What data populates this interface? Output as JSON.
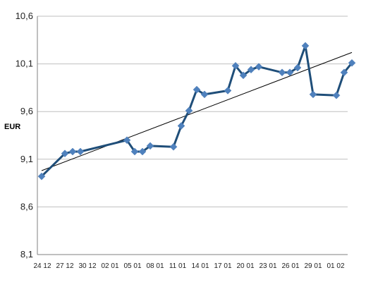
{
  "chart_data": {
    "type": "line",
    "title": "",
    "xlabel": "",
    "ylabel": "EUR",
    "ylim": [
      8.1,
      10.6
    ],
    "yticks": [
      8.1,
      8.6,
      9.1,
      9.6,
      10.1,
      10.6
    ],
    "ytick_labels": [
      "8,1",
      "8,6",
      "9,1",
      "9,6",
      "10,1",
      "10,6"
    ],
    "xtick_labels": [
      "24 12",
      "27 12",
      "30 12",
      "02 01",
      "05 01",
      "08 01",
      "11 01",
      "14 01",
      "17 01",
      "20 01",
      "23 01",
      "26 01",
      "29 01",
      "01 02"
    ],
    "grid": true,
    "legend": "none",
    "series": [
      {
        "color": "#1f4e79",
        "marker": "diamond",
        "marker_color": "#4f81bd",
        "values": [
          [
            0,
            8.92
          ],
          [
            3,
            9.16
          ],
          [
            4,
            9.18
          ],
          [
            5,
            9.18
          ],
          [
            11,
            9.3
          ],
          [
            12,
            9.18
          ],
          [
            13,
            9.18
          ],
          [
            14,
            9.24
          ],
          [
            17,
            9.23
          ],
          [
            18,
            9.45
          ],
          [
            19,
            9.61
          ],
          [
            20,
            9.83
          ],
          [
            21,
            9.78
          ],
          [
            24,
            9.82
          ],
          [
            25,
            10.08
          ],
          [
            26,
            9.98
          ],
          [
            27,
            10.04
          ],
          [
            28,
            10.07
          ],
          [
            31,
            10.01
          ],
          [
            32,
            10.01
          ],
          [
            33,
            10.06
          ],
          [
            34,
            10.29
          ],
          [
            35,
            9.78
          ],
          [
            38,
            9.77
          ],
          [
            39,
            10.01
          ],
          [
            40,
            10.11
          ]
        ]
      },
      {
        "type": "trendline",
        "color": "#000000",
        "values": [
          [
            0,
            8.98
          ],
          [
            40,
            10.22
          ]
        ]
      }
    ]
  }
}
